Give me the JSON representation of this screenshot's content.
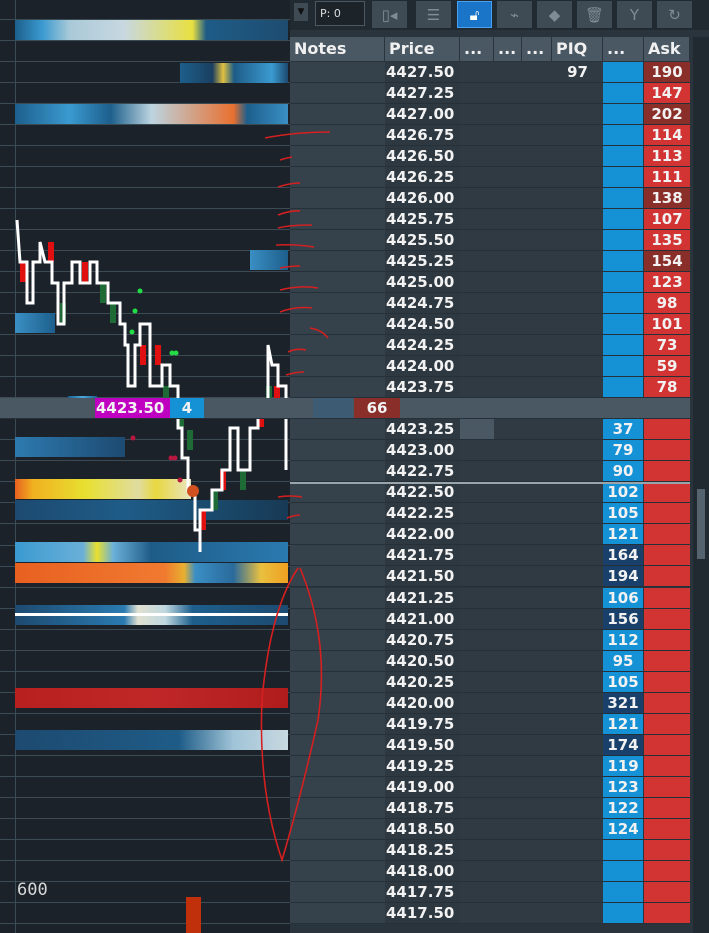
{
  "chart": {
    "volume_label": "600",
    "colors": {
      "buy": "#1e6b36",
      "sell": "#e01010",
      "price_line": "#ffffff",
      "buy_dot": "#22dd44",
      "sell_dot": "#b81840",
      "annotation": "#d42020"
    }
  },
  "toolbar": {
    "position_value": "P: 0",
    "buttons": [
      "dropdown-icon",
      "collapse-columns-icon",
      "align-center-icon",
      "unlock-icon",
      "broom-icon",
      "eraser-icon",
      "trash-icon",
      "filter-icon",
      "refresh-icon"
    ],
    "active": "unlock-icon"
  },
  "ladder": {
    "headers": [
      "Notes",
      "Price",
      "...",
      "...",
      "...",
      "PIQ",
      "...",
      "Ask"
    ],
    "current_price": "4423.50",
    "current_price_qty": "4",
    "colors": {
      "bid": "#1591d6",
      "bid_large": "#18406a",
      "ask": "#d23333",
      "ask_large": "#8a2e2a",
      "current_price": "#c000c0"
    },
    "rows": [
      {
        "price": "4427.50",
        "piq": "97",
        "ask": "190",
        "ask_large": true
      },
      {
        "price": "4427.25",
        "ask": "147"
      },
      {
        "price": "4427.00",
        "ask": "202",
        "ask_large": true
      },
      {
        "price": "4426.75",
        "ask": "114"
      },
      {
        "price": "4426.50",
        "ask": "113"
      },
      {
        "price": "4426.25",
        "ask": "111"
      },
      {
        "price": "4426.00",
        "ask": "138",
        "ask_large": true
      },
      {
        "price": "4425.75",
        "ask": "107"
      },
      {
        "price": "4425.50",
        "ask": "135"
      },
      {
        "price": "4425.25",
        "ask": "154",
        "ask_large": true
      },
      {
        "price": "4425.00",
        "ask": "123"
      },
      {
        "price": "4424.75",
        "ask": "98"
      },
      {
        "price": "4424.50",
        "ask": "101"
      },
      {
        "price": "4424.25",
        "ask": "73"
      },
      {
        "price": "4424.00",
        "ask": "59"
      },
      {
        "price": "4423.75",
        "ask": "78"
      },
      {
        "price": "4423.50",
        "ask": "66",
        "ask_large": true,
        "current": true
      },
      {
        "price": "4423.25",
        "bid": "37"
      },
      {
        "price": "4423.00",
        "bid": "79"
      },
      {
        "price": "4422.75",
        "bid": "90"
      },
      {
        "price": "4422.50",
        "bid": "102"
      },
      {
        "price": "4422.25",
        "bid": "105"
      },
      {
        "price": "4422.00",
        "bid": "121"
      },
      {
        "price": "4421.75",
        "bid": "164",
        "bid_large": true
      },
      {
        "price": "4421.50",
        "bid": "194",
        "bid_large": true
      },
      {
        "price": "4421.25",
        "bid": "106"
      },
      {
        "price": "4421.00",
        "bid": "156",
        "bid_large": true
      },
      {
        "price": "4420.75",
        "bid": "112"
      },
      {
        "price": "4420.50",
        "bid": "95"
      },
      {
        "price": "4420.25",
        "bid": "105"
      },
      {
        "price": "4420.00",
        "bid": "321",
        "bid_large": true
      },
      {
        "price": "4419.75",
        "bid": "121"
      },
      {
        "price": "4419.50",
        "bid": "174",
        "bid_large": true
      },
      {
        "price": "4419.25",
        "bid": "119"
      },
      {
        "price": "4419.00",
        "bid": "123"
      },
      {
        "price": "4418.75",
        "bid": "122"
      },
      {
        "price": "4418.50",
        "bid": "124"
      },
      {
        "price": "4418.25"
      },
      {
        "price": "4418.00"
      },
      {
        "price": "4417.75"
      },
      {
        "price": "4417.50"
      }
    ]
  }
}
